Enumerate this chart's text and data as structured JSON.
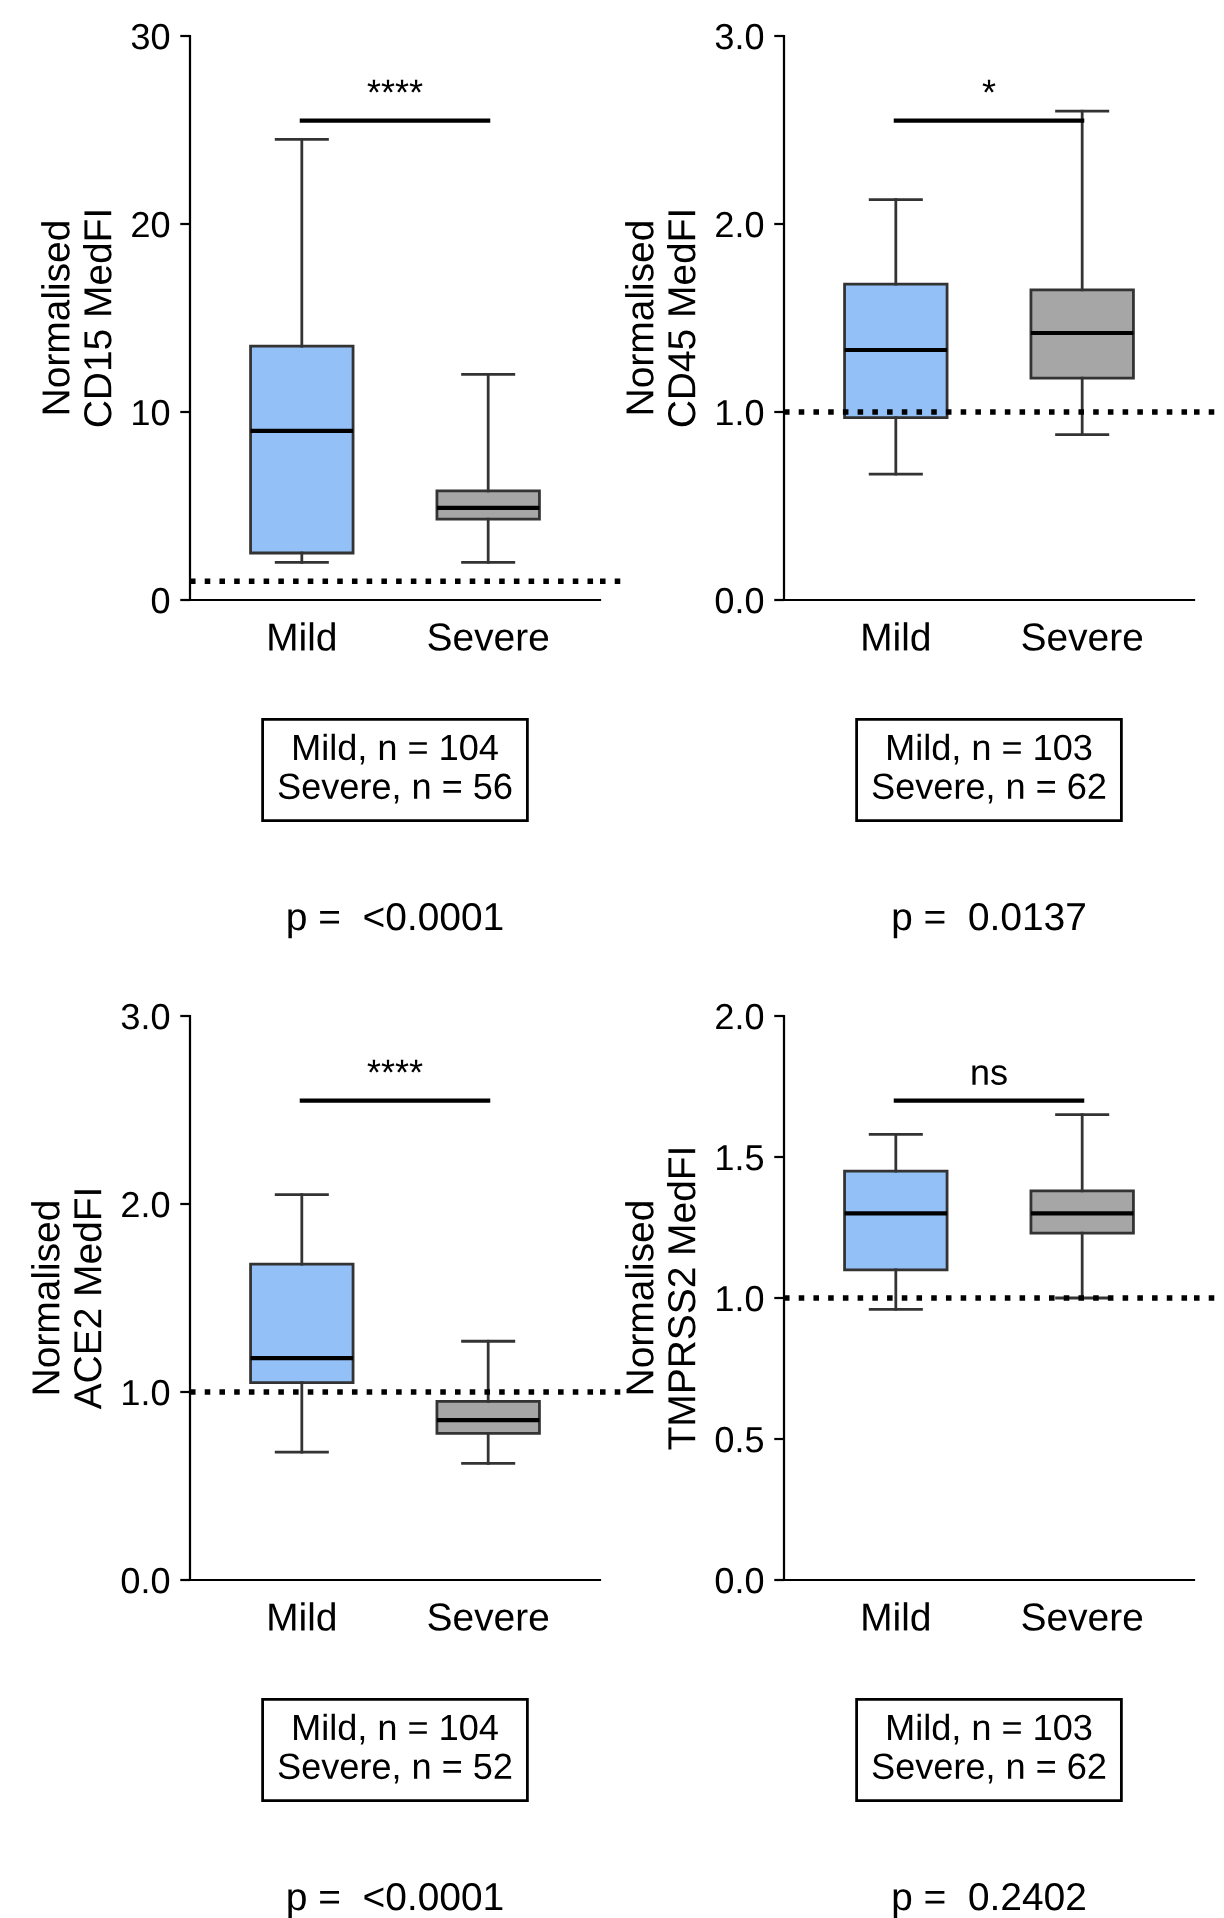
{
  "chart_data": [
    {
      "type": "box",
      "ylabel": "Normalised\nCD15 MedFI",
      "categories": [
        "Mild",
        "Severe"
      ],
      "colors": [
        "#93c0f7",
        "#a6a6a6"
      ],
      "boxes": [
        {
          "low": 2,
          "q1": 2.5,
          "median": 9,
          "q3": 13.5,
          "high": 24.5
        },
        {
          "low": 2,
          "q1": 4.3,
          "median": 4.9,
          "q3": 5.8,
          "high": 12
        }
      ],
      "ylim": [
        0,
        30
      ],
      "yticks": [
        0,
        10,
        20,
        30
      ],
      "grid": false,
      "ref_lines": [
        {
          "axis": "y",
          "value": 1,
          "line_style": "dotted",
          "color": "#000000"
        }
      ],
      "annotations": [
        "****",
        "Mild, n = 104\nSevere, n = 56",
        "p =  <0.0001"
      ]
    },
    {
      "type": "box",
      "ylabel": "Normalised\nCD45 MedFI",
      "categories": [
        "Mild",
        "Severe"
      ],
      "colors": [
        "#93c0f7",
        "#a6a6a6"
      ],
      "boxes": [
        {
          "low": 0.67,
          "q1": 0.97,
          "median": 1.33,
          "q3": 1.68,
          "high": 2.13
        },
        {
          "low": 0.88,
          "q1": 1.18,
          "median": 1.42,
          "q3": 1.65,
          "high": 2.6
        }
      ],
      "ylim": [
        0,
        3
      ],
      "yticks": [
        {
          "value": 0,
          "label": "0.0"
        },
        {
          "value": 1,
          "label": "1.0"
        },
        {
          "value": 2,
          "label": "2.0"
        },
        {
          "value": 3,
          "label": "3.0"
        }
      ],
      "grid": false,
      "ref_lines": [
        {
          "axis": "y",
          "value": 1,
          "line_style": "dotted",
          "color": "#000000"
        }
      ],
      "annotations": [
        "*",
        "Mild, n = 103\nSevere, n = 62",
        "p =  0.0137"
      ]
    },
    {
      "type": "box",
      "ylabel": "Normalised\nACE2 MedFI",
      "categories": [
        "Mild",
        "Severe"
      ],
      "colors": [
        "#93c0f7",
        "#a6a6a6"
      ],
      "boxes": [
        {
          "low": 0.68,
          "q1": 1.05,
          "median": 1.18,
          "q3": 1.68,
          "high": 2.05
        },
        {
          "low": 0.62,
          "q1": 0.78,
          "median": 0.85,
          "q3": 0.95,
          "high": 1.27
        }
      ],
      "ylim": [
        0,
        3
      ],
      "yticks": [
        {
          "value": 0,
          "label": "0.0"
        },
        {
          "value": 1,
          "label": "1.0"
        },
        {
          "value": 2,
          "label": "2.0"
        },
        {
          "value": 3,
          "label": "3.0"
        }
      ],
      "grid": false,
      "ref_lines": [
        {
          "axis": "y",
          "value": 1,
          "line_style": "dotted",
          "color": "#000000"
        }
      ],
      "annotations": [
        "****",
        "Mild, n = 104\nSevere, n = 52",
        "p =  <0.0001"
      ]
    },
    {
      "type": "box",
      "ylabel": "Normalised\nTMPRSS2 MedFI",
      "categories": [
        "Mild",
        "Severe"
      ],
      "colors": [
        "#93c0f7",
        "#a6a6a6"
      ],
      "boxes": [
        {
          "low": 0.96,
          "q1": 1.1,
          "median": 1.3,
          "q3": 1.45,
          "high": 1.58
        },
        {
          "low": 1.0,
          "q1": 1.23,
          "median": 1.3,
          "q3": 1.38,
          "high": 1.65
        }
      ],
      "ylim": [
        0,
        2
      ],
      "yticks": [
        {
          "value": 0,
          "label": "0.0"
        },
        {
          "value": 0.5,
          "label": "0.5"
        },
        {
          "value": 1,
          "label": "1.0"
        },
        {
          "value": 1.5,
          "label": "1.5"
        },
        {
          "value": 2,
          "label": "2.0"
        }
      ],
      "grid": false,
      "ref_lines": [
        {
          "axis": "y",
          "value": 1,
          "line_style": "dotted",
          "color": "#000000"
        }
      ],
      "annotations": [
        "ns",
        "Mild, n = 103\nSevere, n = 62",
        "p =  0.2402"
      ]
    }
  ]
}
